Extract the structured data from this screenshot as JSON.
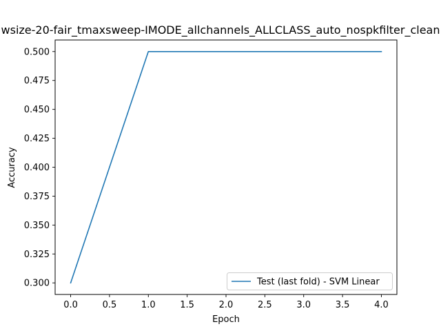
{
  "chart_data": {
    "type": "line",
    "title": "wsize-20-fair_tmaxsweep-IMODE_allchannels_ALLCLASS_auto_nospkfilter_clean",
    "xlabel": "Epoch",
    "ylabel": "Accuracy",
    "xlim": [
      -0.2,
      4.2
    ],
    "ylim": [
      0.29,
      0.51
    ],
    "xticks": [
      0.0,
      0.5,
      1.0,
      1.5,
      2.0,
      2.5,
      3.0,
      3.5,
      4.0
    ],
    "xtick_labels": [
      "0.0",
      "0.5",
      "1.0",
      "1.5",
      "2.0",
      "2.5",
      "3.0",
      "3.5",
      "4.0"
    ],
    "yticks": [
      0.3,
      0.325,
      0.35,
      0.375,
      0.4,
      0.425,
      0.45,
      0.475,
      0.5
    ],
    "ytick_labels": [
      "0.300",
      "0.325",
      "0.350",
      "0.375",
      "0.400",
      "0.425",
      "0.450",
      "0.475",
      "0.500"
    ],
    "grid": false,
    "legend_position": "bottom-right",
    "series": [
      {
        "name": "Test (last fold) - SVM Linear",
        "color": "#1f77b4",
        "x": [
          0,
          1,
          2,
          3,
          4
        ],
        "y": [
          0.3,
          0.5,
          0.5,
          0.5,
          0.5
        ]
      }
    ]
  }
}
